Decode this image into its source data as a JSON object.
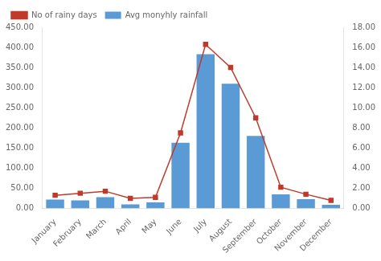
{
  "chart_data": {
    "type": "bar",
    "categories": [
      "January",
      "February",
      "March",
      "April",
      "May",
      "June",
      "July",
      "August",
      "September",
      "October",
      "November",
      "December"
    ],
    "series": [
      {
        "name": "Avg monyhly rainfall",
        "type": "bar",
        "color": "#5b9bd5",
        "values": [
          22,
          20,
          28,
          10,
          15,
          163,
          383,
          310,
          180,
          35,
          23,
          9
        ]
      },
      {
        "name": "No of rainy days",
        "type": "line",
        "color": "#c0392b",
        "marker": "square",
        "axis": "y2",
        "values": [
          1.3,
          1.5,
          1.7,
          1.0,
          1.1,
          7.5,
          16.3,
          14.0,
          9.0,
          2.1,
          1.4,
          0.8
        ]
      }
    ],
    "ylim": [
      0,
      450
    ],
    "yticks": [
      {
        "value": 0,
        "label": "0.00"
      },
      {
        "value": 50,
        "label": "50.00"
      },
      {
        "value": 100,
        "label": "100.00"
      },
      {
        "value": 150,
        "label": "150.00"
      },
      {
        "value": 200,
        "label": "200.00"
      },
      {
        "value": 250,
        "label": "250.00"
      },
      {
        "value": 300,
        "label": "300.00"
      },
      {
        "value": 350,
        "label": "350.00"
      },
      {
        "value": 400,
        "label": "400.00"
      },
      {
        "value": 450,
        "label": "450.00"
      }
    ],
    "y2lim": [
      0,
      18
    ],
    "y2ticks": [
      {
        "value": 0,
        "label": "0.00"
      },
      {
        "value": 2,
        "label": "2.00"
      },
      {
        "value": 4,
        "label": "4.00"
      },
      {
        "value": 6,
        "label": "6.00"
      },
      {
        "value": 8,
        "label": "8.00"
      },
      {
        "value": 10,
        "label": "10.00"
      },
      {
        "value": 12,
        "label": "12.00"
      },
      {
        "value": 14,
        "label": "14.00"
      },
      {
        "value": 16,
        "label": "16.00"
      },
      {
        "value": 18,
        "label": "18.00"
      }
    ],
    "grid": false,
    "legend": "upper left"
  }
}
